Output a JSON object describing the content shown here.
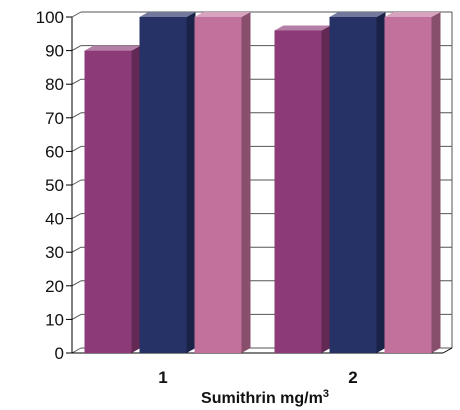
{
  "chart_data": {
    "type": "bar",
    "categories": [
      "1",
      "2"
    ],
    "series": [
      {
        "values": [
          90,
          96
        ],
        "color": "#8C3A78"
      },
      {
        "values": [
          100,
          100
        ],
        "color": "#263166"
      },
      {
        "values": [
          100,
          100
        ],
        "color": "#C2719C"
      }
    ],
    "xlabel": "Sumithrin mg/m",
    "xlabel_sup": "3",
    "ylabel": "",
    "ylim": [
      0,
      100
    ],
    "yticks": [
      "0",
      "10",
      "20",
      "30",
      "40",
      "50",
      "60",
      "70",
      "80",
      "90",
      "100"
    ],
    "grid": true,
    "three_d": true
  }
}
